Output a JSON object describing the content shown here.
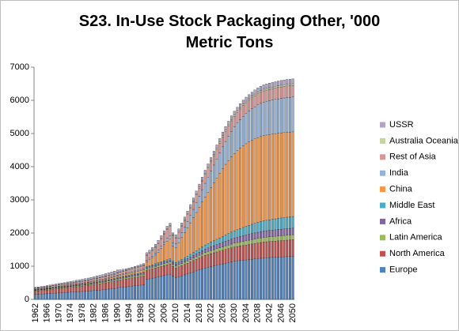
{
  "chart_data": {
    "type": "stacked_bar",
    "title": "S23. In-Use Stock Packaging Other, '000 Metric Tons",
    "categories": [
      "1962",
      null,
      null,
      null,
      "1966",
      null,
      null,
      null,
      "1970",
      null,
      null,
      null,
      "1974",
      null,
      null,
      null,
      "1978",
      null,
      null,
      null,
      "1982",
      null,
      null,
      null,
      "1986",
      null,
      null,
      null,
      "1990",
      null,
      null,
      null,
      "1994",
      null,
      null,
      null,
      "1998",
      null,
      null,
      null,
      "2002",
      null,
      null,
      null,
      "2006",
      null,
      null,
      null,
      "2010",
      null,
      null,
      null,
      "2014",
      null,
      null,
      null,
      "2018",
      null,
      null,
      null,
      "2022",
      null,
      null,
      null,
      "2026",
      null,
      null,
      null,
      "2030",
      null,
      null,
      null,
      "2034",
      null,
      null,
      null,
      "2038",
      null,
      null,
      null,
      "2042",
      null,
      null,
      null,
      "2046",
      null,
      null,
      null,
      "2050"
    ],
    "ylim": [
      0,
      7000
    ],
    "yticks": [
      0,
      1000,
      2000,
      3000,
      4000,
      5000,
      6000,
      7000
    ],
    "grid": false,
    "legend": "right",
    "series": [
      {
        "name": "Europe",
        "color": "#4f81bd",
        "values": [
          150,
          155,
          160,
          165,
          170,
          178,
          185,
          190,
          195,
          200,
          205,
          212,
          218,
          222,
          228,
          235,
          240,
          245,
          250,
          258,
          265,
          272,
          280,
          290,
          300,
          310,
          320,
          330,
          350,
          360,
          370,
          380,
          390,
          400,
          410,
          420,
          430,
          440,
          600,
          620,
          640,
          660,
          680,
          700,
          720,
          740,
          760,
          700,
          650,
          680,
          710,
          740,
          770,
          800,
          830,
          860,
          890,
          920,
          950,
          970,
          990,
          1010,
          1030,
          1050,
          1070,
          1090,
          1110,
          1130,
          1150,
          1160,
          1170,
          1180,
          1190,
          1200,
          1210,
          1220,
          1230,
          1240,
          1250,
          1255,
          1260,
          1265,
          1270,
          1275,
          1280,
          1285,
          1290,
          1295,
          1300
        ]
      },
      {
        "name": "North America",
        "color": "#c0504d",
        "values": [
          100,
          103,
          106,
          109,
          112,
          116,
          120,
          124,
          128,
          132,
          136,
          140,
          144,
          148,
          152,
          156,
          160,
          165,
          170,
          175,
          180,
          185,
          190,
          195,
          200,
          205,
          210,
          215,
          220,
          225,
          230,
          235,
          240,
          245,
          250,
          255,
          260,
          265,
          270,
          275,
          280,
          285,
          290,
          295,
          300,
          305,
          310,
          300,
          300,
          305,
          310,
          315,
          320,
          330,
          340,
          350,
          360,
          370,
          380,
          385,
          390,
          395,
          400,
          405,
          410,
          415,
          420,
          425,
          430,
          435,
          440,
          445,
          450,
          455,
          460,
          465,
          470,
          475,
          480,
          482,
          484,
          486,
          488,
          490,
          492,
          494,
          496,
          498,
          500
        ]
      },
      {
        "name": "Latin America",
        "color": "#9bbb59",
        "values": [
          20,
          20,
          21,
          21,
          22,
          22,
          23,
          23,
          24,
          24,
          25,
          25,
          26,
          26,
          27,
          27,
          28,
          29,
          30,
          31,
          32,
          33,
          34,
          35,
          36,
          37,
          38,
          39,
          40,
          41,
          42,
          43,
          44,
          45,
          46,
          47,
          48,
          49,
          50,
          51,
          52,
          53,
          54,
          55,
          56,
          57,
          58,
          58,
          60,
          62,
          64,
          66,
          68,
          70,
          73,
          76,
          79,
          82,
          85,
          88,
          91,
          94,
          97,
          100,
          103,
          106,
          109,
          112,
          115,
          118,
          121,
          124,
          127,
          130,
          132,
          134,
          136,
          138,
          140,
          141,
          142,
          143,
          144,
          145,
          146,
          147,
          148,
          149,
          150
        ]
      },
      {
        "name": "Africa",
        "color": "#8064a2",
        "values": [
          10,
          10,
          11,
          11,
          12,
          12,
          13,
          13,
          14,
          14,
          15,
          15,
          16,
          16,
          17,
          17,
          18,
          19,
          20,
          21,
          22,
          23,
          24,
          25,
          26,
          27,
          28,
          29,
          30,
          31,
          32,
          33,
          34,
          35,
          36,
          37,
          38,
          39,
          40,
          42,
          44,
          46,
          48,
          50,
          52,
          54,
          56,
          58,
          60,
          64,
          68,
          72,
          76,
          80,
          85,
          90,
          95,
          100,
          105,
          110,
          115,
          120,
          125,
          130,
          135,
          140,
          145,
          150,
          155,
          160,
          165,
          170,
          175,
          178,
          181,
          184,
          187,
          190,
          192,
          193,
          194,
          195,
          196,
          197,
          198,
          198,
          199,
          199,
          200
        ]
      },
      {
        "name": "Middle East",
        "color": "#4bacc6",
        "values": [
          5,
          5,
          5,
          6,
          6,
          6,
          7,
          7,
          7,
          8,
          8,
          8,
          9,
          9,
          10,
          10,
          11,
          11,
          12,
          12,
          13,
          13,
          14,
          14,
          15,
          15,
          16,
          16,
          17,
          17,
          18,
          19,
          20,
          21,
          22,
          23,
          24,
          25,
          26,
          28,
          30,
          32,
          34,
          36,
          38,
          40,
          42,
          44,
          46,
          52,
          58,
          64,
          70,
          78,
          86,
          94,
          102,
          110,
          120,
          130,
          140,
          150,
          160,
          170,
          180,
          190,
          200,
          210,
          220,
          230,
          240,
          250,
          260,
          270,
          280,
          290,
          300,
          305,
          310,
          315,
          320,
          325,
          330,
          335,
          338,
          341,
          344,
          347,
          350
        ]
      },
      {
        "name": "China",
        "color": "#f79646",
        "values": [
          10,
          10,
          11,
          11,
          12,
          12,
          13,
          14,
          15,
          16,
          17,
          18,
          19,
          20,
          21,
          22,
          23,
          24,
          25,
          27,
          29,
          31,
          33,
          35,
          37,
          39,
          41,
          43,
          45,
          48,
          51,
          54,
          57,
          60,
          64,
          68,
          72,
          76,
          150,
          180,
          210,
          260,
          320,
          400,
          480,
          560,
          600,
          450,
          450,
          550,
          650,
          750,
          850,
          950,
          1050,
          1150,
          1250,
          1350,
          1450,
          1550,
          1650,
          1750,
          1850,
          1950,
          2050,
          2130,
          2200,
          2270,
          2330,
          2380,
          2420,
          2460,
          2490,
          2510,
          2530,
          2545,
          2555,
          2560,
          2565,
          2568,
          2570,
          2570,
          2570,
          2568,
          2565,
          2562,
          2560,
          2555,
          2550
        ]
      },
      {
        "name": "India",
        "color": "#95b3d7",
        "values": [
          10,
          10,
          10,
          11,
          11,
          11,
          12,
          12,
          12,
          13,
          13,
          13,
          14,
          14,
          15,
          15,
          16,
          16,
          17,
          17,
          18,
          18,
          19,
          19,
          20,
          21,
          22,
          23,
          24,
          25,
          26,
          27,
          28,
          29,
          30,
          32,
          34,
          36,
          40,
          45,
          50,
          55,
          60,
          70,
          80,
          90,
          100,
          100,
          110,
          130,
          150,
          170,
          190,
          220,
          250,
          290,
          330,
          370,
          410,
          450,
          490,
          530,
          570,
          610,
          650,
          690,
          730,
          770,
          800,
          830,
          860,
          890,
          910,
          930,
          950,
          970,
          985,
          1000,
          1010,
          1015,
          1020,
          1025,
          1030,
          1035,
          1040,
          1044,
          1047,
          1049,
          1050
        ]
      },
      {
        "name": "Rest of Asia",
        "color": "#d99694",
        "values": [
          30,
          31,
          32,
          33,
          34,
          35,
          36,
          37,
          38,
          39,
          40,
          41,
          42,
          43,
          44,
          45,
          46,
          47,
          48,
          49,
          50,
          52,
          54,
          56,
          58,
          60,
          62,
          64,
          66,
          68,
          70,
          72,
          74,
          76,
          78,
          80,
          82,
          84,
          150,
          160,
          170,
          180,
          200,
          220,
          240,
          260,
          270,
          200,
          170,
          180,
          190,
          200,
          210,
          220,
          230,
          240,
          250,
          260,
          270,
          275,
          280,
          285,
          290,
          295,
          300,
          305,
          310,
          315,
          320,
          322,
          324,
          326,
          328,
          330,
          332,
          334,
          336,
          338,
          340,
          341,
          342,
          343,
          344,
          345,
          346,
          347,
          348,
          349,
          350
        ]
      },
      {
        "name": "Australia Oceania",
        "color": "#c3d69b",
        "values": [
          10,
          10,
          10,
          10,
          11,
          11,
          11,
          11,
          12,
          12,
          12,
          12,
          13,
          13,
          13,
          13,
          14,
          14,
          15,
          15,
          15,
          16,
          16,
          16,
          17,
          17,
          17,
          18,
          18,
          18,
          19,
          19,
          19,
          20,
          20,
          20,
          21,
          21,
          22,
          22,
          23,
          23,
          24,
          24,
          25,
          25,
          26,
          26,
          27,
          27,
          28,
          28,
          29,
          29,
          30,
          30,
          31,
          31,
          32,
          33,
          34,
          35,
          36,
          37,
          38,
          39,
          40,
          41,
          42,
          43,
          44,
          45,
          46,
          46,
          47,
          47,
          48,
          48,
          48,
          49,
          49,
          49,
          49,
          50,
          50,
          50,
          50,
          50,
          50
        ]
      },
      {
        "name": "USSR",
        "color": "#b3a2c7",
        "values": [
          20,
          22,
          24,
          26,
          28,
          30,
          32,
          34,
          36,
          38,
          40,
          42,
          44,
          46,
          48,
          50,
          52,
          54,
          56,
          58,
          60,
          62,
          64,
          66,
          68,
          70,
          72,
          74,
          76,
          60,
          50,
          45,
          42,
          40,
          40,
          42,
          44,
          46,
          60,
          62,
          64,
          66,
          68,
          70,
          72,
          74,
          76,
          70,
          72,
          74,
          76,
          78,
          80,
          82,
          84,
          86,
          88,
          90,
          92,
          94,
          96,
          98,
          100,
          102,
          104,
          106,
          108,
          110,
          112,
          114,
          116,
          118,
          120,
          122,
          124,
          126,
          128,
          130,
          132,
          134,
          136,
          138,
          140,
          142,
          144,
          146,
          148,
          149,
          150
        ]
      }
    ]
  }
}
